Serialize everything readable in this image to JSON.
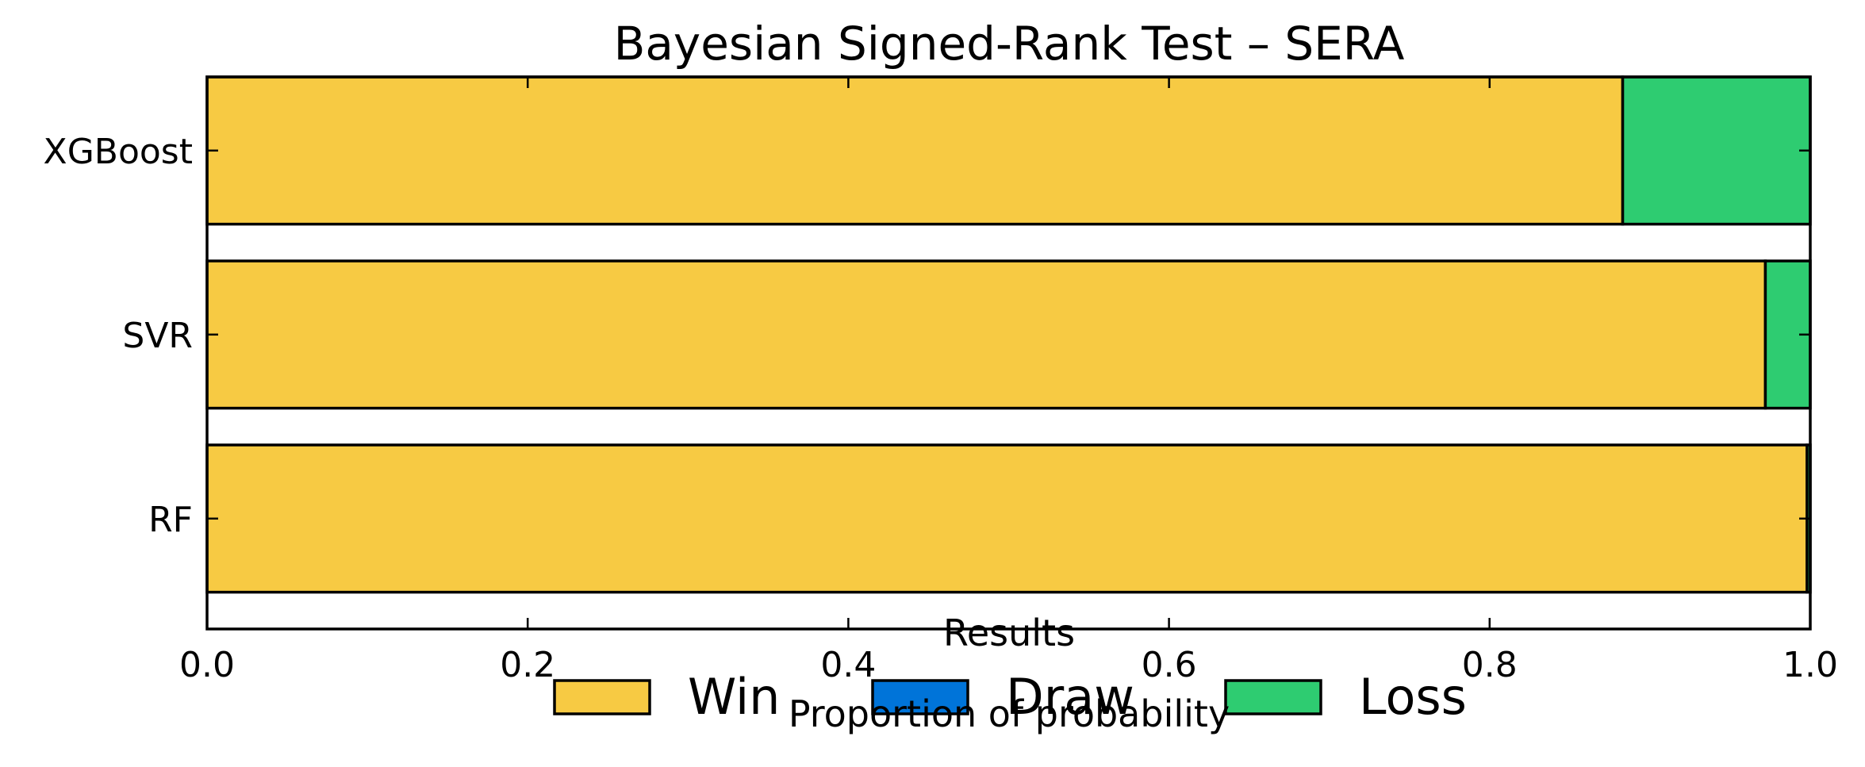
{
  "chart_data": {
    "type": "bar",
    "orientation": "horizontal",
    "stacked": true,
    "title": "Bayesian Signed-Rank Test – SERA",
    "xlabel": "Proportion of probability",
    "ylabel": "",
    "xlim": [
      0.0,
      1.0
    ],
    "x_ticks": [
      "0.0",
      "0.2",
      "0.4",
      "0.6",
      "0.8",
      "1.0"
    ],
    "categories": [
      "XGBoost",
      "SVR",
      "RF"
    ],
    "series": [
      {
        "name": "Win",
        "color": "#F7CA43",
        "values": [
          0.883,
          0.972,
          0.998
        ]
      },
      {
        "name": "Draw",
        "color": "#0074D9",
        "values": [
          0.0,
          0.0,
          0.0
        ]
      },
      {
        "name": "Loss",
        "color": "#2ECC71",
        "values": [
          0.117,
          0.028,
          0.002
        ]
      }
    ],
    "grid": false,
    "legend": {
      "title": "Results",
      "placement": "bottom-center",
      "entries": [
        "Win",
        "Draw",
        "Loss"
      ]
    }
  }
}
